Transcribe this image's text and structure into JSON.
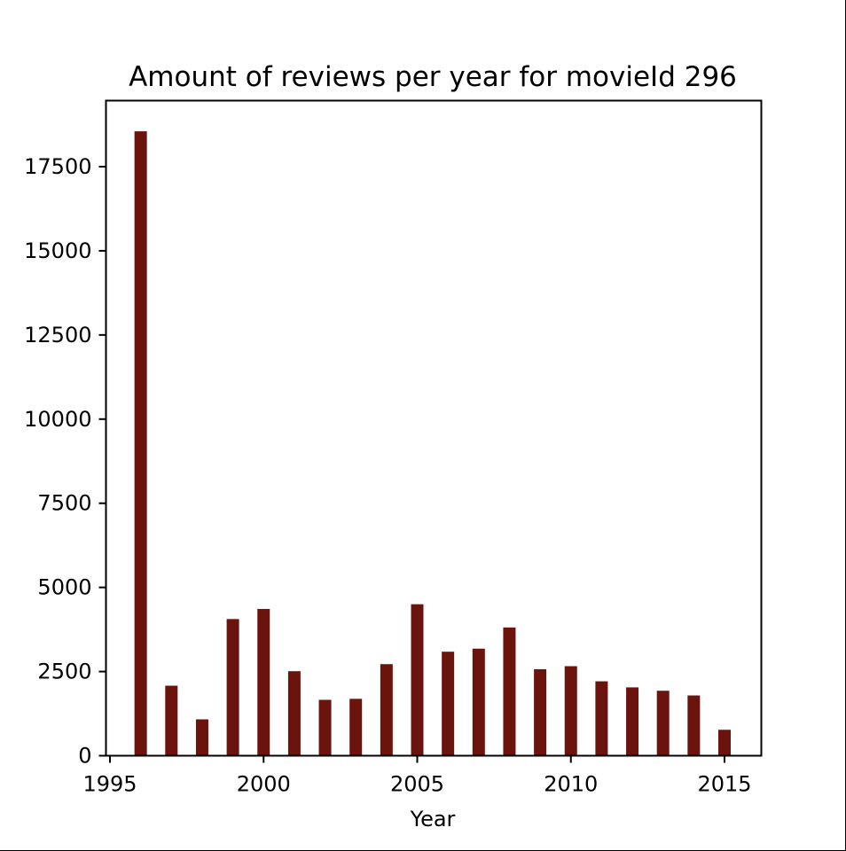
{
  "chart_data": {
    "type": "bar",
    "title": "Amount of reviews per year for movieId 296",
    "xlabel": "Year",
    "ylabel": "",
    "x": [
      1996,
      1997,
      1998,
      1999,
      2000,
      2001,
      2002,
      2003,
      2004,
      2005,
      2006,
      2007,
      2008,
      2009,
      2010,
      2011,
      2012,
      2013,
      2014,
      2015
    ],
    "values": [
      18550,
      2080,
      1080,
      4060,
      4360,
      2510,
      1660,
      1690,
      2720,
      4500,
      3090,
      3180,
      3810,
      2570,
      2660,
      2210,
      2030,
      1930,
      1790,
      770
    ],
    "xlim": [
      1994.75,
      1996.0
    ],
    "xlim_note": "",
    "xticks": [
      "1995",
      "2000",
      "2005",
      "2010",
      "2015"
    ],
    "yticks": [
      "0",
      "2500",
      "5000",
      "7500",
      "10000",
      "12500",
      "15000",
      "17500"
    ],
    "bar_color": "#6b140e",
    "grid": false
  }
}
